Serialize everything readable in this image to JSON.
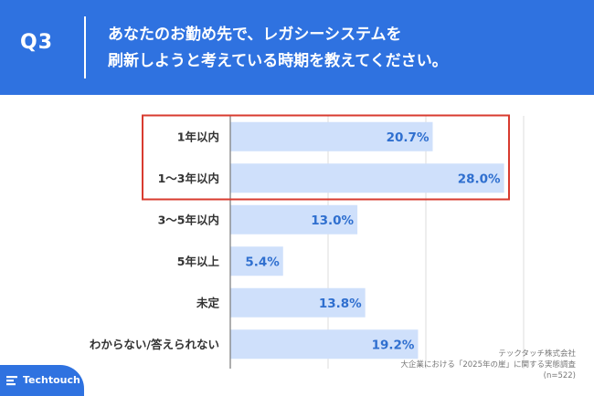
{
  "header": {
    "question_id": "Q3",
    "question_line1": "あなたのお勤め先で、レガシーシステムを",
    "question_line2": "刷新しようと考えている時期を教えてください。"
  },
  "chart_data": {
    "type": "bar",
    "orientation": "horizontal",
    "categories": [
      "1年以内",
      "1〜3年以内",
      "3〜5年以内",
      "5年以上",
      "未定",
      "わからない/答えられない"
    ],
    "values": [
      20.7,
      28.0,
      13.0,
      5.4,
      13.8,
      19.2
    ],
    "value_labels": [
      "20.7%",
      "28.0%",
      "13.0%",
      "5.4%",
      "13.8%",
      "19.2%"
    ],
    "xlim": [
      0,
      30
    ],
    "grid": true,
    "highlighted_categories": [
      "1年以内",
      "1〜3年以内"
    ],
    "colors": {
      "bar": "#cfe0fb",
      "value_text": "#2f6fcf",
      "highlight_box": "#d83b2f",
      "grid": "#dddddd"
    }
  },
  "footer": {
    "company": "テックタッチ株式会社",
    "survey": "大企業における「2025年の崖」に関する実態調査",
    "sample": "(n=522)"
  },
  "logo": {
    "text": "Techtouch",
    "icon": "techtouch-logo-icon"
  },
  "colors": {
    "background": "#2f72e0",
    "panel": "#ffffff"
  }
}
